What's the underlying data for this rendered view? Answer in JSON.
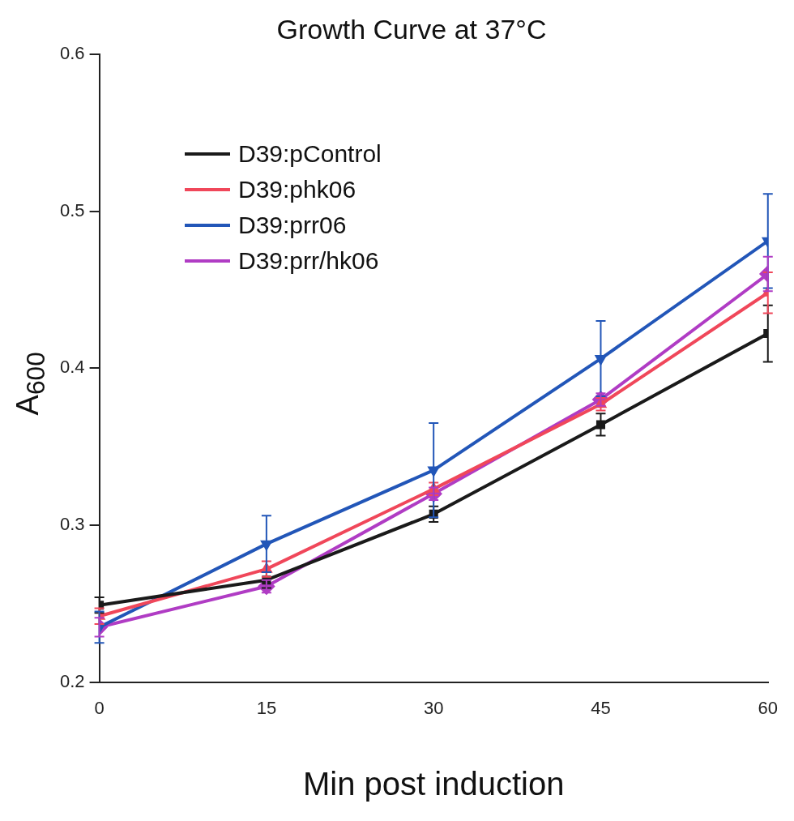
{
  "chart_data": {
    "type": "line",
    "title": "Growth Curve at 37°C",
    "xlabel": "Min post induction",
    "ylabel": "A$_{600}$",
    "x": [
      0,
      15,
      30,
      45,
      60
    ],
    "xlim": [
      0,
      60
    ],
    "xticks": [
      0,
      15,
      30,
      45,
      60
    ],
    "ylim": [
      0.2,
      0.6
    ],
    "yticks": [
      0.2,
      0.3,
      0.4,
      0.5,
      0.6
    ],
    "grid": false,
    "legend": "top left",
    "line_style": "solid",
    "series": [
      {
        "name": "D39:pControl",
        "color": "#1a1a1a",
        "marker": "square",
        "values": [
          0.249,
          0.265,
          0.307,
          0.364,
          0.422
        ],
        "errors": [
          0.005,
          0.005,
          0.005,
          0.007,
          0.018
        ]
      },
      {
        "name": "D39:phk06",
        "color": "#f0475a",
        "marker": "triangle",
        "values": [
          0.242,
          0.272,
          0.323,
          0.377,
          0.448
        ],
        "errors": [
          0.005,
          0.005,
          0.004,
          0.004,
          0.013
        ]
      },
      {
        "name": "D39:prr06",
        "color": "#2256b8",
        "marker": "triangle-down",
        "values": [
          0.235,
          0.288,
          0.335,
          0.406,
          0.481
        ],
        "errors": [
          0.01,
          0.018,
          0.03,
          0.024,
          0.03
        ]
      },
      {
        "name": "D39:prr/hk06",
        "color": "#b03cc4",
        "marker": "diamond",
        "values": [
          0.235,
          0.261,
          0.32,
          0.38,
          0.46
        ],
        "errors": [
          0.006,
          0.004,
          0.004,
          0.004,
          0.011
        ]
      }
    ]
  }
}
